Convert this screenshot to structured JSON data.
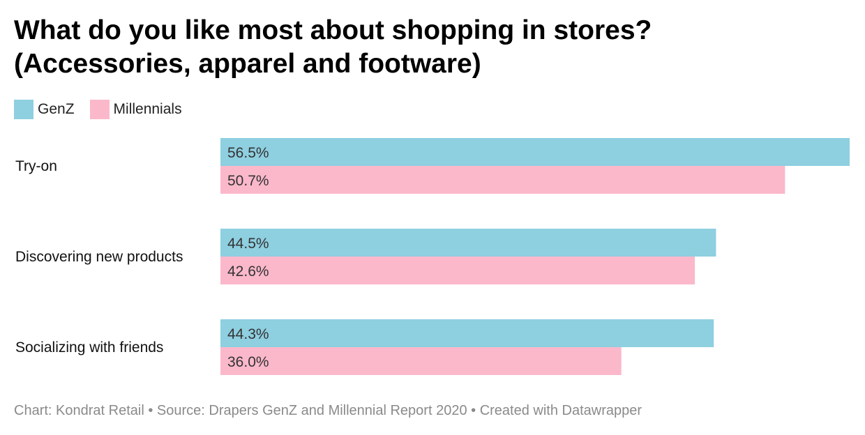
{
  "chart_data": {
    "type": "bar",
    "orientation": "horizontal",
    "title": "What do you like most about shopping in stores?",
    "subtitle": "(Accessories, apparel and footware)",
    "categories": [
      "Try-on",
      "Discovering new products",
      "Socializing with friends"
    ],
    "series": [
      {
        "name": "GenZ",
        "color": "#8ecfe0",
        "values": [
          56.5,
          44.5,
          44.3
        ],
        "labels": [
          "56.5%",
          "44.5%",
          "44.3%"
        ]
      },
      {
        "name": "Millennials",
        "color": "#fbb8cb",
        "values": [
          50.7,
          42.6,
          36.0
        ],
        "labels": [
          "50.7%",
          "42.6%",
          "36.0%"
        ]
      }
    ],
    "xlim": [
      0,
      56.5
    ],
    "legend_position": "top-left",
    "grid": false
  },
  "footer": {
    "chart_by": "Chart: Kondrat Retail",
    "separator": " • ",
    "source": "Source: Drapers GenZ and Millennial Report 2020",
    "created_with": "Created with Datawrapper"
  }
}
